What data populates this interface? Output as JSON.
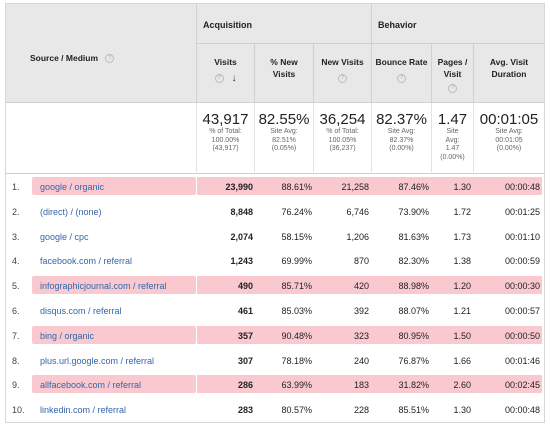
{
  "header": {
    "source_medium": "Source / Medium",
    "acquisition": "Acquisition",
    "behavior": "Behavior",
    "columns": [
      {
        "label": "Visits",
        "sort": "↓"
      },
      {
        "label": "% New Visits"
      },
      {
        "label": "New Visits"
      },
      {
        "label": "Bounce Rate"
      },
      {
        "label": "Pages / Visit"
      },
      {
        "label": "Avg. Visit Duration"
      }
    ],
    "help_icon": "?"
  },
  "totals": {
    "visits": {
      "big": "43,917",
      "l1": "% of Total:",
      "l2": "100.00%",
      "l3": "(43,917)"
    },
    "new_pct": {
      "big": "82.55%",
      "l1": "Site Avg:",
      "l2": "82.51%",
      "l3": "(0.05%)"
    },
    "new_visits": {
      "big": "36,254",
      "l1": "% of Total:",
      "l2": "100.05%",
      "l3": "(36,237)"
    },
    "bounce": {
      "big": "82.37%",
      "l1": "Site Avg:",
      "l2": "82.37%",
      "l3": "(0.00%)"
    },
    "pages": {
      "big": "1.47",
      "l1": "Site",
      "l2": "Avg:",
      "l3": "1.47",
      "l4": "(0.00%)"
    },
    "duration": {
      "big": "00:01:05",
      "l1": "Site Avg:",
      "l2": "00:01:05",
      "l3": "(0.00%)"
    }
  },
  "rows": [
    {
      "idx": "1.",
      "src": "google / organic",
      "visits": "23,990",
      "newpct": "88.61%",
      "newv": "21,258",
      "bounce": "87.46%",
      "pages": "1.30",
      "dur": "00:00:48",
      "hl": true
    },
    {
      "idx": "2.",
      "src": "(direct) / (none)",
      "visits": "8,848",
      "newpct": "76.24%",
      "newv": "6,746",
      "bounce": "73.90%",
      "pages": "1.72",
      "dur": "00:01:25",
      "hl": false
    },
    {
      "idx": "3.",
      "src": "google / cpc",
      "visits": "2,074",
      "newpct": "58.15%",
      "newv": "1,206",
      "bounce": "81.63%",
      "pages": "1.73",
      "dur": "00:01:10",
      "hl": false
    },
    {
      "idx": "4.",
      "src": "facebook.com / referral",
      "visits": "1,243",
      "newpct": "69.99%",
      "newv": "870",
      "bounce": "82.30%",
      "pages": "1.38",
      "dur": "00:00:59",
      "hl": false
    },
    {
      "idx": "5.",
      "src": "infographicjournal.com / referral",
      "visits": "490",
      "newpct": "85.71%",
      "newv": "420",
      "bounce": "88.98%",
      "pages": "1.20",
      "dur": "00:00:30",
      "hl": true
    },
    {
      "idx": "6.",
      "src": "disqus.com / referral",
      "visits": "461",
      "newpct": "85.03%",
      "newv": "392",
      "bounce": "88.07%",
      "pages": "1.21",
      "dur": "00:00:57",
      "hl": false
    },
    {
      "idx": "7.",
      "src": "bing / organic",
      "visits": "357",
      "newpct": "90.48%",
      "newv": "323",
      "bounce": "80.95%",
      "pages": "1.50",
      "dur": "00:00:50",
      "hl": true
    },
    {
      "idx": "8.",
      "src": "plus.url.google.com / referral",
      "visits": "307",
      "newpct": "78.18%",
      "newv": "240",
      "bounce": "76.87%",
      "pages": "1.66",
      "dur": "00:01:46",
      "hl": false
    },
    {
      "idx": "9.",
      "src": "allfacebook.com / referral",
      "visits": "286",
      "newpct": "63.99%",
      "newv": "183",
      "bounce": "31.82%",
      "pages": "2.60",
      "dur": "00:02:45",
      "hl": true
    },
    {
      "idx": "10.",
      "src": "linkedin.com / referral",
      "visits": "283",
      "newpct": "80.57%",
      "newv": "228",
      "bounce": "85.51%",
      "pages": "1.30",
      "dur": "00:00:48",
      "hl": false
    }
  ],
  "colors": {
    "highlight": "#f9c9cf",
    "link": "#3366aa",
    "header_bg": "#e8e8e8"
  }
}
